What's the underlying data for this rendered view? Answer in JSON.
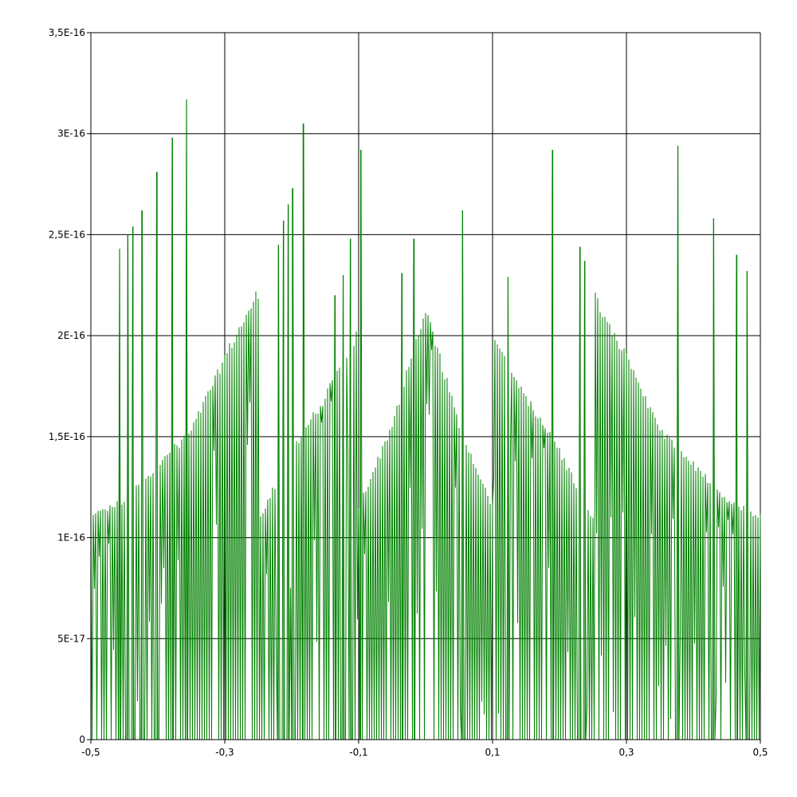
{
  "chart_data": {
    "type": "line",
    "title": "",
    "xlabel": "",
    "ylabel": "",
    "xlim": [
      -0.5,
      0.5
    ],
    "ylim": [
      0,
      3.5e-16
    ],
    "grid": true,
    "legend": "none",
    "colors": {
      "series": "#008000",
      "grid": "#000000",
      "background": "#ffffff"
    },
    "x_ticks": [
      {
        "value": -0.5,
        "label": "-0,5"
      },
      {
        "value": -0.3,
        "label": "-0,3"
      },
      {
        "value": -0.1,
        "label": "-0,1"
      },
      {
        "value": 0.1,
        "label": "0,1"
      },
      {
        "value": 0.3,
        "label": "0,3"
      },
      {
        "value": 0.5,
        "label": "0,5"
      }
    ],
    "y_ticks": [
      {
        "value": 0,
        "label": "0"
      },
      {
        "value": 5e-17,
        "label": "5E-17"
      },
      {
        "value": 1e-16,
        "label": "1E-16"
      },
      {
        "value": 1.5e-16,
        "label": "1,5E-16"
      },
      {
        "value": 2e-16,
        "label": "2E-16"
      },
      {
        "value": 2.5e-16,
        "label": "2,5E-16"
      },
      {
        "value": 3e-16,
        "label": "3E-16"
      },
      {
        "value": 3.5e-16,
        "label": "3,5E-16"
      }
    ],
    "envelope": {
      "x": [
        -0.5,
        -0.45,
        -0.4,
        -0.35,
        -0.3,
        -0.25,
        -0.25,
        -0.2,
        -0.15,
        -0.1,
        -0.1,
        -0.05,
        0.0,
        0.05,
        0.1,
        0.1,
        0.15,
        0.2,
        0.25,
        0.25,
        0.3,
        0.35,
        0.4,
        0.45,
        0.5
      ],
      "y": [
        1.12e-16,
        1.2e-16,
        1.38e-16,
        1.55e-16,
        1.92e-16,
        2.25e-16,
        1.1e-16,
        1.45e-16,
        1.72e-16,
        2.05e-16,
        1.17e-16,
        1.58e-16,
        2.17e-16,
        1.58e-16,
        1.17e-16,
        2.05e-16,
        1.72e-16,
        1.45e-16,
        1.1e-16,
        2.25e-16,
        1.92e-16,
        1.55e-16,
        1.38e-16,
        1.2e-16,
        1.12e-16
      ]
    },
    "spikes": [
      {
        "x": -0.457,
        "y": 2.43e-16
      },
      {
        "x": -0.445,
        "y": 2.5e-16
      },
      {
        "x": -0.437,
        "y": 2.54e-16
      },
      {
        "x": -0.424,
        "y": 2.62e-16
      },
      {
        "x": -0.401,
        "y": 2.81e-16
      },
      {
        "x": -0.378,
        "y": 2.98e-16
      },
      {
        "x": -0.357,
        "y": 3.17e-16
      },
      {
        "x": -0.22,
        "y": 2.45e-16
      },
      {
        "x": -0.212,
        "y": 2.57e-16
      },
      {
        "x": -0.205,
        "y": 2.65e-16
      },
      {
        "x": -0.199,
        "y": 2.73e-16
      },
      {
        "x": -0.183,
        "y": 3.05e-16
      },
      {
        "x": -0.135,
        "y": 2.2e-16
      },
      {
        "x": -0.123,
        "y": 2.3e-16
      },
      {
        "x": -0.112,
        "y": 2.48e-16
      },
      {
        "x": -0.097,
        "y": 2.92e-16
      },
      {
        "x": -0.035,
        "y": 2.31e-16
      },
      {
        "x": -0.017,
        "y": 2.48e-16
      },
      {
        "x": 0.055,
        "y": 2.62e-16
      },
      {
        "x": 0.123,
        "y": 2.29e-16
      },
      {
        "x": 0.19,
        "y": 2.92e-16
      },
      {
        "x": 0.231,
        "y": 2.44e-16
      },
      {
        "x": 0.238,
        "y": 2.37e-16
      },
      {
        "x": 0.377,
        "y": 2.94e-16
      },
      {
        "x": 0.43,
        "y": 2.58e-16
      },
      {
        "x": 0.465,
        "y": 2.4e-16
      },
      {
        "x": 0.48,
        "y": 2.32e-16
      }
    ],
    "sample_count": 560
  }
}
